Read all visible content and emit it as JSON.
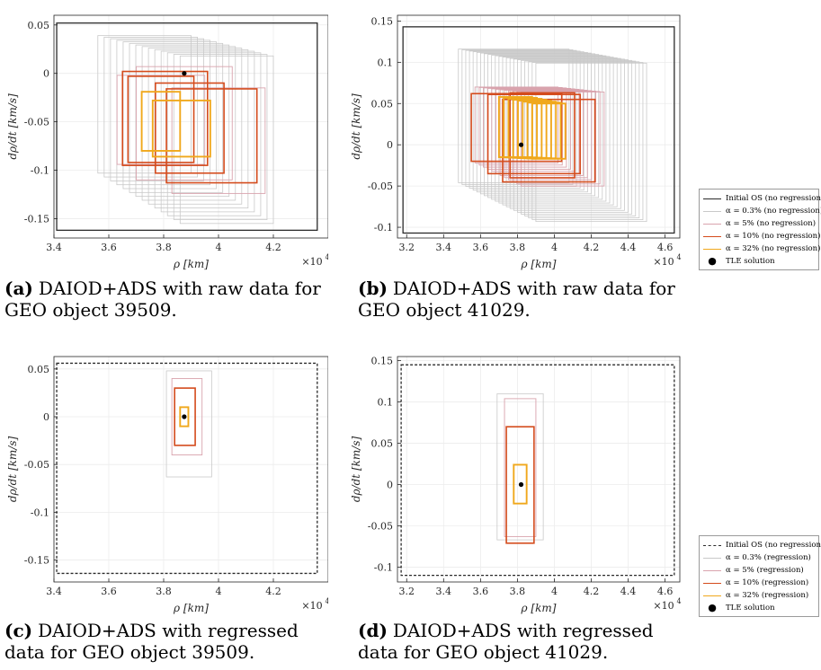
{
  "labels": {
    "xlabel": "ρ [km]",
    "ylabel": "dρ/dt [km/s]",
    "x_multiplier": "×10",
    "x_multiplier_exp": "4"
  },
  "colors": {
    "initial_os": "#2b2b2b",
    "a03": "#c9c9c9",
    "a5": "#d9a3ad",
    "a10": "#d44b1c",
    "a32": "#f0a81c",
    "tle": "#000000"
  },
  "captions": [
    {
      "label": "(a)",
      "line1": "DAIOD+ADS with raw data for",
      "line2": "GEO object 39509."
    },
    {
      "label": "(b)",
      "line1": "DAIOD+ADS with raw data for",
      "line2": "GEO object 41029."
    },
    {
      "label": "(c)",
      "line1": "DAIOD+ADS with regressed",
      "line2": "data for GEO object 39509."
    },
    {
      "label": "(d)",
      "line1": "DAIOD+ADS with regressed",
      "line2": "data for GEO object 41029."
    }
  ],
  "legend_top": [
    {
      "key": "initial_os",
      "style": "solid",
      "label": "Initial OS (no regression)"
    },
    {
      "key": "a03",
      "style": "solid",
      "label": "α = 0.3% (no regression)"
    },
    {
      "key": "a5",
      "style": "solid",
      "label": "α = 5% (no regression)"
    },
    {
      "key": "a10",
      "style": "solid",
      "label": "α = 10% (no regression)"
    },
    {
      "key": "a32",
      "style": "solid",
      "label": "α = 32% (no regression)"
    },
    {
      "key": "tle",
      "style": "dot",
      "label": "TLE solution"
    }
  ],
  "legend_bottom": [
    {
      "key": "initial_os",
      "style": "dashed",
      "label": "Initial OS (no regression)"
    },
    {
      "key": "a03",
      "style": "solid",
      "label": "α = 0.3% (regression)"
    },
    {
      "key": "a5",
      "style": "solid",
      "label": "α = 5% (regression)"
    },
    {
      "key": "a10",
      "style": "solid",
      "label": "α = 10% (regression)"
    },
    {
      "key": "a32",
      "style": "solid",
      "label": "α = 32% (regression)"
    },
    {
      "key": "tle",
      "style": "dot",
      "label": "TLE solution"
    }
  ],
  "chart_data": [
    {
      "id": "a",
      "type": "rectangles",
      "xlim": [
        34000,
        44000
      ],
      "ylim": [
        -0.17,
        0.06
      ],
      "xticks": [
        34000,
        36000,
        38000,
        40000,
        42000
      ],
      "xticklabels": [
        "3.4",
        "3.6",
        "3.8",
        "4",
        "4.2"
      ],
      "yticks": [
        -0.15,
        -0.1,
        -0.05,
        0,
        0.05
      ],
      "yticklabels": [
        "-0.15",
        "-0.1",
        "-0.05",
        "0",
        "0.05"
      ],
      "tle": [
        38750,
        0.0
      ],
      "sets": [
        {
          "key": "initial_os",
          "style": "solid",
          "rects": [
            [
              34100,
              43600,
              -0.162,
              0.052
            ]
          ]
        },
        {
          "key": "a03",
          "style": "solid",
          "sweep": {
            "x0": [
              35600,
              38600
            ],
            "w": 3400,
            "y0": [
              -0.103,
              -0.155
            ],
            "y1": [
              0.039,
              0.018
            ],
            "n": 14
          }
        },
        {
          "key": "a5",
          "style": "solid",
          "rects": [
            [
              36300,
              39500,
              -0.094,
              -0.002
            ],
            [
              37000,
              40500,
              -0.11,
              0.007
            ],
            [
              38300,
              41700,
              -0.124,
              -0.015
            ]
          ]
        },
        {
          "key": "a10",
          "style": "solid",
          "rects": [
            [
              36500,
              39600,
              -0.095,
              0.002
            ],
            [
              37700,
              40200,
              -0.103,
              -0.01
            ],
            [
              38100,
              41400,
              -0.113,
              -0.016
            ],
            [
              36700,
              39100,
              -0.092,
              -0.003
            ]
          ]
        },
        {
          "key": "a32",
          "style": "solid",
          "rects": [
            [
              37200,
              38600,
              -0.08,
              -0.019
            ],
            [
              37600,
              39700,
              -0.086,
              -0.028
            ]
          ]
        }
      ]
    },
    {
      "id": "b",
      "type": "rectangles",
      "xlim": [
        31500,
        46800
      ],
      "ylim": [
        -0.113,
        0.157
      ],
      "xticks": [
        32000,
        34000,
        36000,
        38000,
        40000,
        42000,
        44000,
        46000
      ],
      "xticklabels": [
        "3.2",
        "3.4",
        "3.6",
        "3.8",
        "4",
        "4.2",
        "4.4",
        "4.6"
      ],
      "yticks": [
        -0.1,
        -0.05,
        0,
        0.05,
        0.1,
        0.15
      ],
      "yticklabels": [
        "-0.1",
        "-0.05",
        "0",
        "0.05",
        "0.1",
        "0.15"
      ],
      "tle": [
        38200,
        0.0
      ],
      "sets": [
        {
          "key": "initial_os",
          "style": "solid",
          "rects": [
            [
              31800,
              46500,
              -0.107,
              0.143
            ]
          ]
        },
        {
          "key": "a03",
          "style": "solid",
          "sweep": {
            "x0": [
              34800,
              39000
            ],
            "w": 6000,
            "y0": [
              -0.046,
              -0.093
            ],
            "y1": [
              0.116,
              0.099
            ],
            "n": 22
          }
        },
        {
          "key": "a5",
          "style": "solid",
          "sweep": {
            "x0": [
              35700,
              38200
            ],
            "w": 4500,
            "y0": [
              -0.022,
              -0.05
            ],
            "y1": [
              0.07,
              0.064
            ],
            "n": 12
          }
        },
        {
          "key": "a10",
          "style": "solid",
          "rects": [
            [
              35500,
              40400,
              -0.02,
              0.062
            ],
            [
              36400,
              41400,
              -0.035,
              0.061
            ],
            [
              37200,
              42200,
              -0.045,
              0.055
            ],
            [
              37600,
              41100,
              -0.04,
              0.063
            ]
          ]
        },
        {
          "key": "a32",
          "style": "solid",
          "sweep": {
            "x0": [
              37000,
              38800
            ],
            "w": 1800,
            "y0": [
              -0.015,
              -0.017
            ],
            "y1": [
              0.058,
              0.05
            ],
            "n": 8
          }
        }
      ]
    },
    {
      "id": "c",
      "type": "rectangles",
      "xlim": [
        34000,
        44000
      ],
      "ylim": [
        -0.173,
        0.063
      ],
      "xticks": [
        34000,
        36000,
        38000,
        40000,
        42000
      ],
      "xticklabels": [
        "3.4",
        "3.6",
        "3.8",
        "4",
        "4.2"
      ],
      "yticks": [
        -0.15,
        -0.1,
        -0.05,
        0,
        0.05
      ],
      "yticklabels": [
        "-0.15",
        "-0.1",
        "-0.05",
        "0",
        "0.05"
      ],
      "tle": [
        38750,
        0.0
      ],
      "sets": [
        {
          "key": "initial_os",
          "style": "dashed",
          "rects": [
            [
              34100,
              43600,
              -0.164,
              0.056
            ]
          ]
        },
        {
          "key": "a03",
          "style": "solid",
          "rects": [
            [
              38100,
              39750,
              -0.063,
              0.048
            ]
          ]
        },
        {
          "key": "a5",
          "style": "solid",
          "rects": [
            [
              38300,
              39400,
              -0.04,
              0.04
            ]
          ]
        },
        {
          "key": "a10",
          "style": "solid",
          "rects": [
            [
              38400,
              39150,
              -0.03,
              0.03
            ]
          ]
        },
        {
          "key": "a32",
          "style": "solid",
          "rects": [
            [
              38600,
              38900,
              -0.01,
              0.01
            ]
          ]
        }
      ]
    },
    {
      "id": "d",
      "type": "rectangles",
      "xlim": [
        31500,
        46800
      ],
      "ylim": [
        -0.118,
        0.155
      ],
      "xticks": [
        32000,
        34000,
        36000,
        38000,
        40000,
        42000,
        44000,
        46000
      ],
      "xticklabels": [
        "3.2",
        "3.4",
        "3.6",
        "3.8",
        "4",
        "4.2",
        "4.4",
        "4.6"
      ],
      "yticks": [
        -0.1,
        -0.05,
        0,
        0.05,
        0.1,
        0.15
      ],
      "yticklabels": [
        "-0.1",
        "-0.05",
        "0",
        "0.05",
        "0.1",
        "0.15"
      ],
      "tle": [
        38200,
        0.0
      ],
      "sets": [
        {
          "key": "initial_os",
          "style": "dashed",
          "rects": [
            [
              31700,
              46500,
              -0.11,
              0.145
            ]
          ]
        },
        {
          "key": "a03",
          "style": "solid",
          "rects": [
            [
              36900,
              39400,
              -0.067,
              0.11
            ]
          ]
        },
        {
          "key": "a5",
          "style": "solid",
          "rects": [
            [
              37300,
              39000,
              -0.063,
              0.104
            ]
          ]
        },
        {
          "key": "a10",
          "style": "solid",
          "rects": [
            [
              37400,
              38900,
              -0.071,
              0.07
            ]
          ]
        },
        {
          "key": "a32",
          "style": "solid",
          "rects": [
            [
              37800,
              38500,
              -0.023,
              0.024
            ]
          ]
        }
      ]
    }
  ]
}
